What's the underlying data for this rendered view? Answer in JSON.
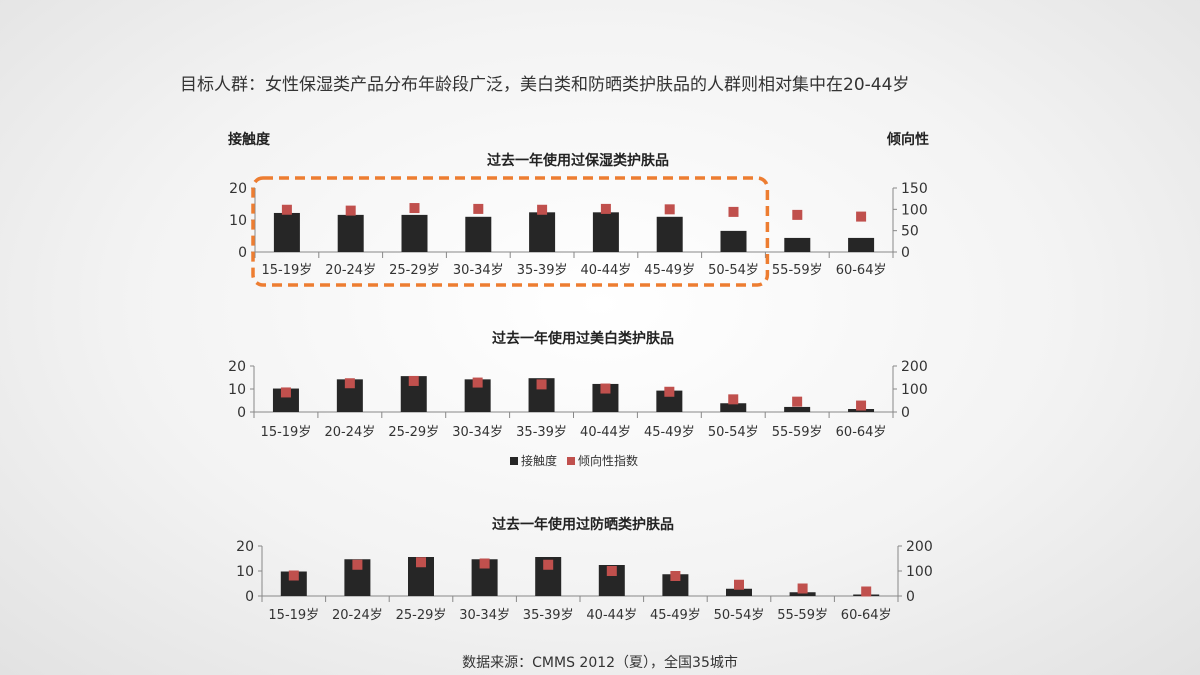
{
  "headline": "目标人群：女性保湿类产品分布年龄段广泛，美白类和防晒类护肤品的人群则相对集中在20-44岁",
  "axis_caption_left": "接触度",
  "axis_caption_right": "倾向性",
  "legend": {
    "bar_label": "接触度",
    "marker_label": "倾向性指数"
  },
  "source": "数据来源：CMMS 2012（夏），全国35城市",
  "colors": {
    "bar": "#262626",
    "marker": "#c0504d",
    "highlight": "#ed7d31"
  },
  "chart_data": [
    {
      "type": "bar",
      "title": "过去一年使用过保湿类护肤品",
      "categories": [
        "15-19岁",
        "20-24岁",
        "25-29岁",
        "30-34岁",
        "35-39岁",
        "40-44岁",
        "45-49岁",
        "50-54岁",
        "55-59岁",
        "60-64岁"
      ],
      "series": [
        {
          "axis": "left",
          "kind": "bar",
          "values": [
            12.2,
            11.6,
            11.6,
            11.0,
            12.4,
            12.4,
            11.0,
            6.6,
            4.4,
            4.4
          ]
        },
        {
          "axis": "right",
          "kind": "marker",
          "values": [
            99,
            97,
            103,
            101,
            99,
            101,
            100,
            94,
            87,
            83
          ]
        }
      ],
      "ylim_left": [
        0,
        20
      ],
      "yticks_left": [
        0,
        10,
        20
      ],
      "ylim_right": [
        0,
        150
      ],
      "yticks_right": [
        0,
        50,
        100,
        150
      ],
      "highlight_categories": [
        "15-19岁",
        "50-54岁"
      ]
    },
    {
      "type": "bar",
      "title": "过去一年使用过美白类护肤品",
      "categories": [
        "15-19岁",
        "20-24岁",
        "25-29岁",
        "30-34岁",
        "35-39岁",
        "40-44岁",
        "45-49岁",
        "50-54岁",
        "55-59岁",
        "60-64岁"
      ],
      "series": [
        {
          "axis": "left",
          "kind": "bar",
          "values": [
            10.2,
            14.2,
            15.6,
            14.2,
            14.7,
            12.2,
            9.3,
            3.8,
            2.2,
            1.3
          ]
        },
        {
          "axis": "right",
          "kind": "marker",
          "values": [
            85,
            125,
            135,
            128,
            120,
            102,
            88,
            55,
            45,
            28
          ]
        }
      ],
      "ylim_left": [
        0,
        20
      ],
      "yticks_left": [
        0,
        10,
        20
      ],
      "ylim_right": [
        0,
        200
      ],
      "yticks_right": [
        0,
        100,
        200
      ]
    },
    {
      "type": "bar",
      "title": "过去一年使用过防晒类护肤品",
      "categories": [
        "15-19岁",
        "20-24岁",
        "25-29岁",
        "30-34岁",
        "35-39岁",
        "40-44岁",
        "45-49岁",
        "50-54岁",
        "55-59岁",
        "60-64岁"
      ],
      "series": [
        {
          "axis": "left",
          "kind": "bar",
          "values": [
            9.8,
            14.7,
            15.6,
            14.7,
            15.6,
            12.4,
            8.7,
            2.9,
            1.5,
            0.6
          ]
        },
        {
          "axis": "right",
          "kind": "marker",
          "values": [
            82,
            125,
            135,
            130,
            125,
            100,
            80,
            45,
            30,
            18
          ]
        }
      ],
      "ylim_left": [
        0,
        20
      ],
      "yticks_left": [
        0,
        10,
        20
      ],
      "ylim_right": [
        0,
        200
      ],
      "yticks_right": [
        0,
        100,
        200
      ]
    }
  ]
}
